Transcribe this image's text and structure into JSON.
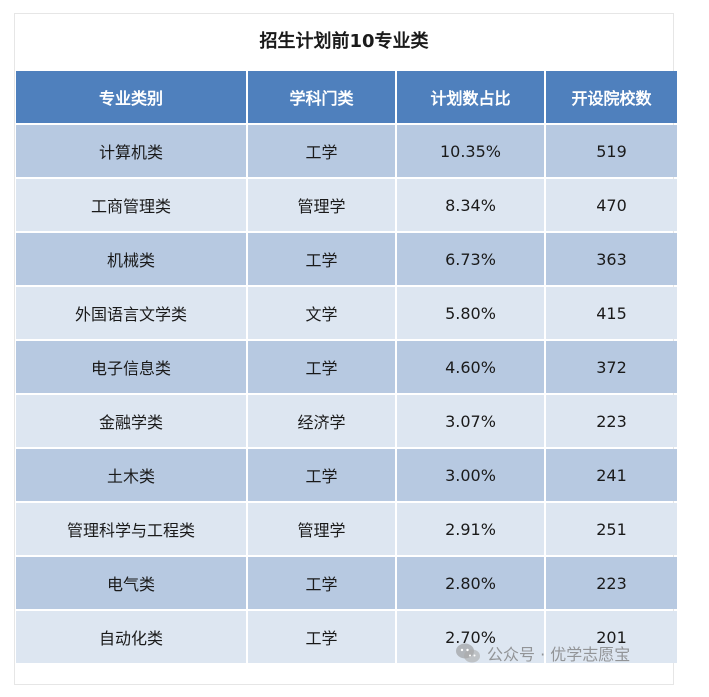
{
  "table": {
    "title": "招生计划前10专业类",
    "headers": [
      "专业类别",
      "学科门类",
      "计划数占比",
      "开设院校数"
    ],
    "rows": [
      [
        "计算机类",
        "工学",
        "10.35%",
        "519"
      ],
      [
        "工商管理类",
        "管理学",
        "8.34%",
        "470"
      ],
      [
        "机械类",
        "工学",
        "6.73%",
        "363"
      ],
      [
        "外国语言文学类",
        "文学",
        "5.80%",
        "415"
      ],
      [
        "电子信息类",
        "工学",
        "4.60%",
        "372"
      ],
      [
        "金融学类",
        "经济学",
        "3.07%",
        "223"
      ],
      [
        "土木类",
        "工学",
        "3.00%",
        "241"
      ],
      [
        "管理科学与工程类",
        "管理学",
        "2.91%",
        "251"
      ],
      [
        "电气类",
        "工学",
        "2.80%",
        "223"
      ],
      [
        "自动化类",
        "工学",
        "2.70%",
        "201"
      ]
    ]
  },
  "watermark": {
    "text": "公众号 · 优学志愿宝",
    "icon": "wechat-icon"
  },
  "colors": {
    "header_bg": "#4f80bd",
    "row_dark": "#b7c9e1",
    "row_light": "#dde6f1"
  }
}
